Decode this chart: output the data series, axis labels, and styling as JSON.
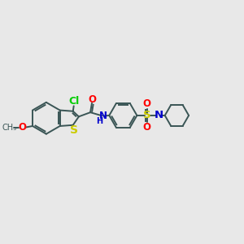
{
  "bg_color": "#e8e8e8",
  "bond_color": "#3a5555",
  "cl_color": "#00cc00",
  "o_color": "#ff0000",
  "s_color": "#cccc00",
  "n_color": "#0000cc",
  "so2_o_color": "#ff0000",
  "line_width": 1.4,
  "font_size": 8.5,
  "fig_width": 3.0,
  "fig_height": 3.0,
  "xlim": [
    0,
    12
  ],
  "ylim": [
    0,
    10
  ]
}
